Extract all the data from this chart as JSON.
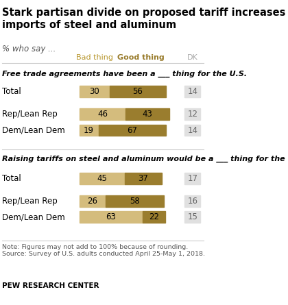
{
  "title": "Stark partisan divide on proposed tariff increases on\nimports of steel and aluminum",
  "subtitle": "% who say ...",
  "color_bad": "#d4bc7d",
  "color_good": "#9a7d2e",
  "color_dk_bg": "#e0e0e0",
  "header_bad": "Bad thing",
  "header_good": "Good thing",
  "header_dk": "DK",
  "section1_label": "Free trade agreements have been a ___ thing for the U.S.",
  "section2_label": "Raising tariffs on steel and aluminum would be a ___ thing for the U.S.",
  "rows": [
    {
      "label": "Total",
      "bad": 30,
      "good": 56,
      "dk": 14,
      "section": 1
    },
    {
      "label": "Rep/Lean Rep",
      "bad": 46,
      "good": 43,
      "dk": 12,
      "section": 1
    },
    {
      "label": "Dem/Lean Dem",
      "bad": 19,
      "good": 67,
      "dk": 14,
      "section": 1
    },
    {
      "label": "Total",
      "bad": 45,
      "good": 37,
      "dk": 17,
      "section": 2
    },
    {
      "label": "Rep/Lean Rep",
      "bad": 26,
      "good": 58,
      "dk": 16,
      "section": 2
    },
    {
      "label": "Dem/Lean Dem",
      "bad": 63,
      "good": 22,
      "dk": 15,
      "section": 2
    }
  ],
  "note": "Note: Figures may not add to 100% because of rounding.\nSource: Survey of U.S. adults conducted April 25-May 1, 2018.",
  "footer": "PEW RESEARCH CENTER",
  "background_color": "#ffffff"
}
